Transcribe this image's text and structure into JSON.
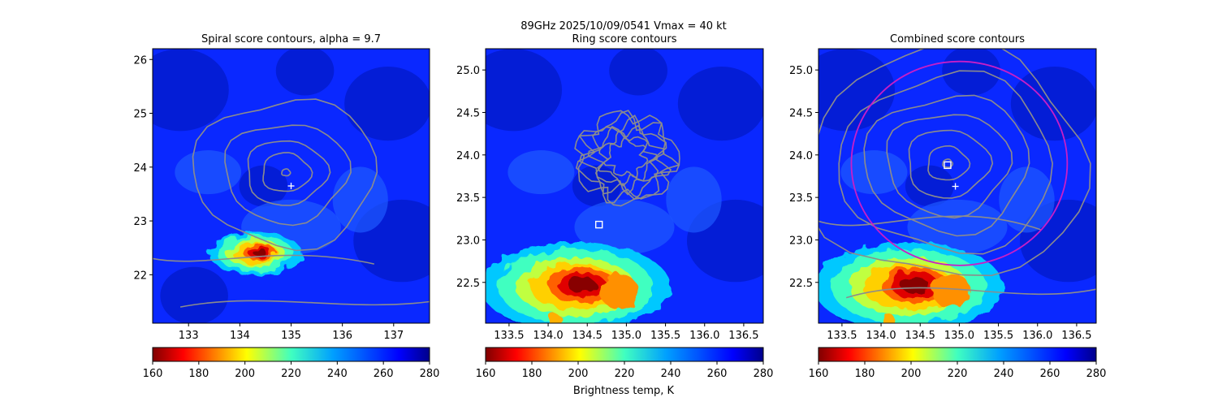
{
  "figure": {
    "suptitle_line1": "89GHz  2025/10/09/0541    Vmax = 40 kt",
    "colorbar_label": "Brightness temp, K"
  },
  "colorbar": {
    "colormap": "jet_reversed",
    "vmin": 160,
    "vmax": 280,
    "ticks": [
      "160",
      "180",
      "200",
      "220",
      "240",
      "260",
      "280"
    ]
  },
  "chart_data": [
    {
      "type": "heatmap",
      "title": "Spiral score contours, alpha =  9.7",
      "xlim": [
        132.3,
        137.7
      ],
      "ylim": [
        21.1,
        26.2
      ],
      "xticks": [
        "133",
        "134",
        "135",
        "136",
        "137"
      ],
      "yticks": [
        "22",
        "23",
        "24",
        "25",
        "26"
      ],
      "cold_cloud_center": [
        134.3,
        22.4
      ],
      "contour_center": [
        134.9,
        23.9
      ],
      "markers": [
        {
          "shape": "plus",
          "lon": 135.0,
          "lat": 23.65
        }
      ]
    },
    {
      "type": "heatmap",
      "title": "Ring score contours",
      "xlim": [
        133.2,
        136.75
      ],
      "ylim": [
        22.02,
        25.25
      ],
      "xticks": [
        "133.5",
        "134.0",
        "134.5",
        "135.0",
        "135.5",
        "136.0",
        "136.5"
      ],
      "yticks": [
        "22.5",
        "23.0",
        "23.5",
        "24.0",
        "24.5",
        "25.0"
      ],
      "cold_cloud_center": [
        134.35,
        22.45
      ],
      "contour_disc_center": [
        135.0,
        23.96
      ],
      "markers": [
        {
          "shape": "square",
          "lon": 134.65,
          "lat": 23.18
        }
      ]
    },
    {
      "type": "heatmap",
      "title": "Combined score contours",
      "xlim": [
        133.2,
        136.75
      ],
      "ylim": [
        22.02,
        25.25
      ],
      "xticks": [
        "133.5",
        "134.0",
        "134.5",
        "135.0",
        "135.5",
        "136.0",
        "136.5"
      ],
      "yticks": [
        "22.5",
        "23.0",
        "23.5",
        "24.0",
        "24.5",
        "25.0"
      ],
      "cold_cloud_center": [
        134.35,
        22.45
      ],
      "contour_center": [
        134.85,
        23.9
      ],
      "circle_color": "#c81ec8",
      "markers": [
        {
          "shape": "square",
          "lon": 134.85,
          "lat": 23.88
        },
        {
          "shape": "plus",
          "lon": 134.95,
          "lat": 23.63
        }
      ]
    }
  ]
}
